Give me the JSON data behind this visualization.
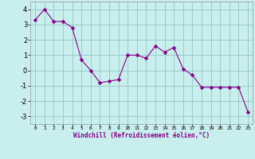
{
  "x": [
    0,
    1,
    2,
    3,
    4,
    5,
    6,
    7,
    8,
    9,
    10,
    11,
    12,
    13,
    14,
    15,
    16,
    17,
    18,
    19,
    20,
    21,
    22,
    23
  ],
  "y": [
    3.3,
    4.0,
    3.2,
    3.2,
    2.8,
    0.7,
    0.0,
    -0.8,
    -0.7,
    -0.6,
    1.0,
    1.0,
    0.8,
    1.6,
    1.2,
    1.5,
    0.1,
    -0.3,
    -1.1,
    -1.1,
    -1.1,
    -1.1,
    -1.1,
    -2.7
  ],
  "line_color": "#880088",
  "marker": "D",
  "marker_size": 2.5,
  "bg_color": "#c8eeed",
  "grid_color": "#99cccc",
  "xlabel": "Windchill (Refroidissement éolien,°C)",
  "ylabel_ticks": [
    "-3",
    "-2",
    "-1",
    "0",
    "1",
    "2",
    "3",
    "4"
  ],
  "yticks": [
    -3,
    -2,
    -1,
    0,
    1,
    2,
    3,
    4
  ],
  "ylim": [
    -3.5,
    4.5
  ],
  "xlim": [
    -0.5,
    23.5
  ],
  "xtick_labels": [
    "0",
    "1",
    "2",
    "3",
    "4",
    "5",
    "6",
    "7",
    "8",
    "9",
    "10",
    "11",
    "12",
    "13",
    "14",
    "15",
    "16",
    "17",
    "18",
    "19",
    "20",
    "21",
    "22",
    "23"
  ]
}
